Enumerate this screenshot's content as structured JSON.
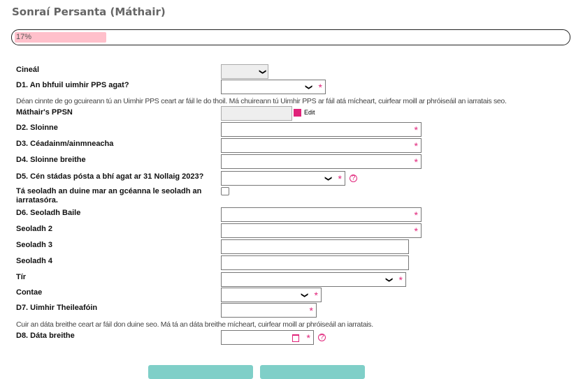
{
  "title": "Sonraí Persanta (Máthair)",
  "progress": {
    "value": 17,
    "label": "17%",
    "color": "#ffc0cb"
  },
  "fields": {
    "cineal": "Cineál",
    "d1": "D1. An bhfuil uimhir PPS agat?",
    "pps_hint": "Déan cinnte de go gcuireann tú an Uimhir PPS ceart ar fáil le do thoil. Má chuireann tú Uimhir PPS ar fáil atá mícheart, cuirfear moill ar phróiseáil an iarratais seo.",
    "ppsn": "Máthair's PPSN",
    "edit": "Edit",
    "d2": "D2. Sloinne",
    "d3": "D3. Céadainm/ainmneacha",
    "d4": "D4. Sloinne breithe",
    "d5": "D5. Cén stádas pósta a bhí agat ar 31 Nollaig 2023?",
    "same_address": "Tá seoladh an duine mar an gcéanna le seoladh an iarratasóra.",
    "d6": "D6. Seoladh Baile",
    "addr2": "Seoladh 2",
    "addr3": "Seoladh 3",
    "addr4": "Seoladh 4",
    "tir": "Tír",
    "contae": "Contae",
    "d7": "D7. Uimhir Theileafóin",
    "dob_hint": "Cuir an dáta breithe ceart ar fáil don duine seo. Má tá an dáta breithe mícheart, cuirfear moill ar phróiseáil an iarratais.",
    "d8": "D8. Dáta breithe"
  },
  "required_mark": "*",
  "help_mark": "?",
  "accent": "#e0237a"
}
